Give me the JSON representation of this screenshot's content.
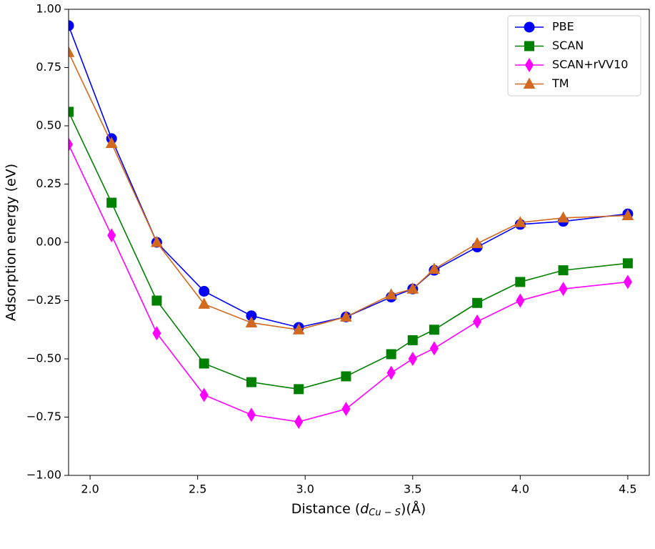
{
  "chart_data": {
    "type": "line",
    "xlabel": [
      "Distance (",
      "d",
      "Cu − S",
      ")(Å)"
    ],
    "ylabel": "Adsorption energy (eV)",
    "x": [
      1.9,
      2.1,
      2.31,
      2.53,
      2.75,
      2.97,
      3.19,
      3.4,
      3.5,
      3.6,
      3.8,
      4.0,
      4.2,
      4.5
    ],
    "series": [
      {
        "name": "PBE",
        "color": "#0000ff",
        "marker": "o",
        "values": [
          0.93,
          0.445,
          0.0,
          -0.21,
          -0.315,
          -0.365,
          -0.32,
          -0.235,
          -0.2,
          -0.12,
          -0.02,
          0.077,
          0.09,
          0.122
        ]
      },
      {
        "name": "SCAN",
        "color": "#008000",
        "marker": "s",
        "values": [
          0.56,
          0.17,
          -0.25,
          -0.52,
          -0.6,
          -0.63,
          -0.575,
          -0.48,
          -0.42,
          -0.375,
          -0.26,
          -0.17,
          -0.12,
          -0.09
        ]
      },
      {
        "name": "SCAN+rVV10",
        "color": "#ff00ff",
        "marker": "d",
        "values": [
          0.42,
          0.03,
          -0.39,
          -0.655,
          -0.74,
          -0.77,
          -0.715,
          -0.56,
          -0.5,
          -0.455,
          -0.34,
          -0.25,
          -0.2,
          -0.17
        ]
      },
      {
        "name": "TM",
        "color": "#d2691e",
        "marker": "^",
        "values": [
          0.815,
          0.425,
          0.0,
          -0.265,
          -0.345,
          -0.375,
          -0.32,
          -0.225,
          -0.2,
          -0.115,
          -0.005,
          0.085,
          0.105,
          0.115
        ]
      }
    ],
    "xlim": [
      1.9,
      4.6
    ],
    "xticks": [
      {
        "value": 2.0,
        "label": "2.0"
      },
      {
        "value": 2.5,
        "label": "2.5"
      },
      {
        "value": 3.0,
        "label": "3.0"
      },
      {
        "value": 3.5,
        "label": "3.5"
      },
      {
        "value": 4.0,
        "label": "4.0"
      },
      {
        "value": 4.5,
        "label": "4.5"
      }
    ],
    "ylim": [
      -1.0,
      1.0
    ],
    "yticks": [
      {
        "value": -1.0,
        "label": "−1.00"
      },
      {
        "value": -0.75,
        "label": "−0.75"
      },
      {
        "value": -0.5,
        "label": "−0.50"
      },
      {
        "value": -0.25,
        "label": "−0.25"
      },
      {
        "value": 0.0,
        "label": "0.00"
      },
      {
        "value": 0.25,
        "label": "0.25"
      },
      {
        "value": 0.5,
        "label": "0.50"
      },
      {
        "value": 0.75,
        "label": "0.75"
      },
      {
        "value": 1.0,
        "label": "1.00"
      }
    ],
    "legend": "upper-right"
  }
}
